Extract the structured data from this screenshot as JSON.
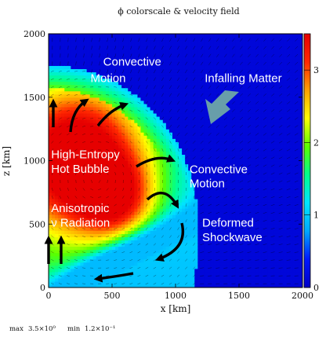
{
  "chart_data": {
    "type": "heatmap",
    "title": "ϕ colorscale & velocity field",
    "xlabel": "x [km]",
    "ylabel": "z [km]",
    "xlim": [
      0,
      2000
    ],
    "ylim": [
      0,
      2000
    ],
    "xticks": [
      "0",
      "500",
      "1000",
      "1500",
      "2000"
    ],
    "yticks": [
      "0",
      "500",
      "1000",
      "1500",
      "2000"
    ],
    "colorbar": {
      "range": [
        0,
        3.5
      ],
      "ticks": [
        "0",
        "1",
        "2",
        "3"
      ],
      "colors": [
        "#0000c8",
        "#0018ff",
        "#00a8ff",
        "#00e6ff",
        "#00ff8c",
        "#5aff00",
        "#ffff00",
        "#ffa000",
        "#ff2800",
        "#e60000"
      ]
    },
    "field": {
      "background_value": 0.12,
      "shock_radius_equator_km": 1150,
      "shock_radius_pole_km": 1750,
      "bubble_peak_value": 3.5
    },
    "footer": {
      "max_label": "max",
      "max_value": "3.5×10⁰",
      "min_label": "min",
      "min_value": "1.2×10⁻¹"
    },
    "annotations": [
      {
        "text": "Convective",
        "x": 430,
        "y": 1750
      },
      {
        "text": "Motion",
        "x": 330,
        "y": 1620
      },
      {
        "text": "Infalling Matter",
        "x": 1230,
        "y": 1620
      },
      {
        "text": "High-Entropy",
        "x": 20,
        "y": 1020
      },
      {
        "text": "Hot Bubble",
        "x": 20,
        "y": 905
      },
      {
        "text": "Convective",
        "x": 1110,
        "y": 900
      },
      {
        "text": "Motion",
        "x": 1110,
        "y": 790
      },
      {
        "text": "Anisotropic",
        "x": 20,
        "y": 595
      },
      {
        "text": "ν Radiation",
        "x": 20,
        "y": 480
      },
      {
        "text": "Deformed",
        "x": 1210,
        "y": 480
      },
      {
        "text": "Shockwave",
        "x": 1210,
        "y": 365
      }
    ]
  }
}
